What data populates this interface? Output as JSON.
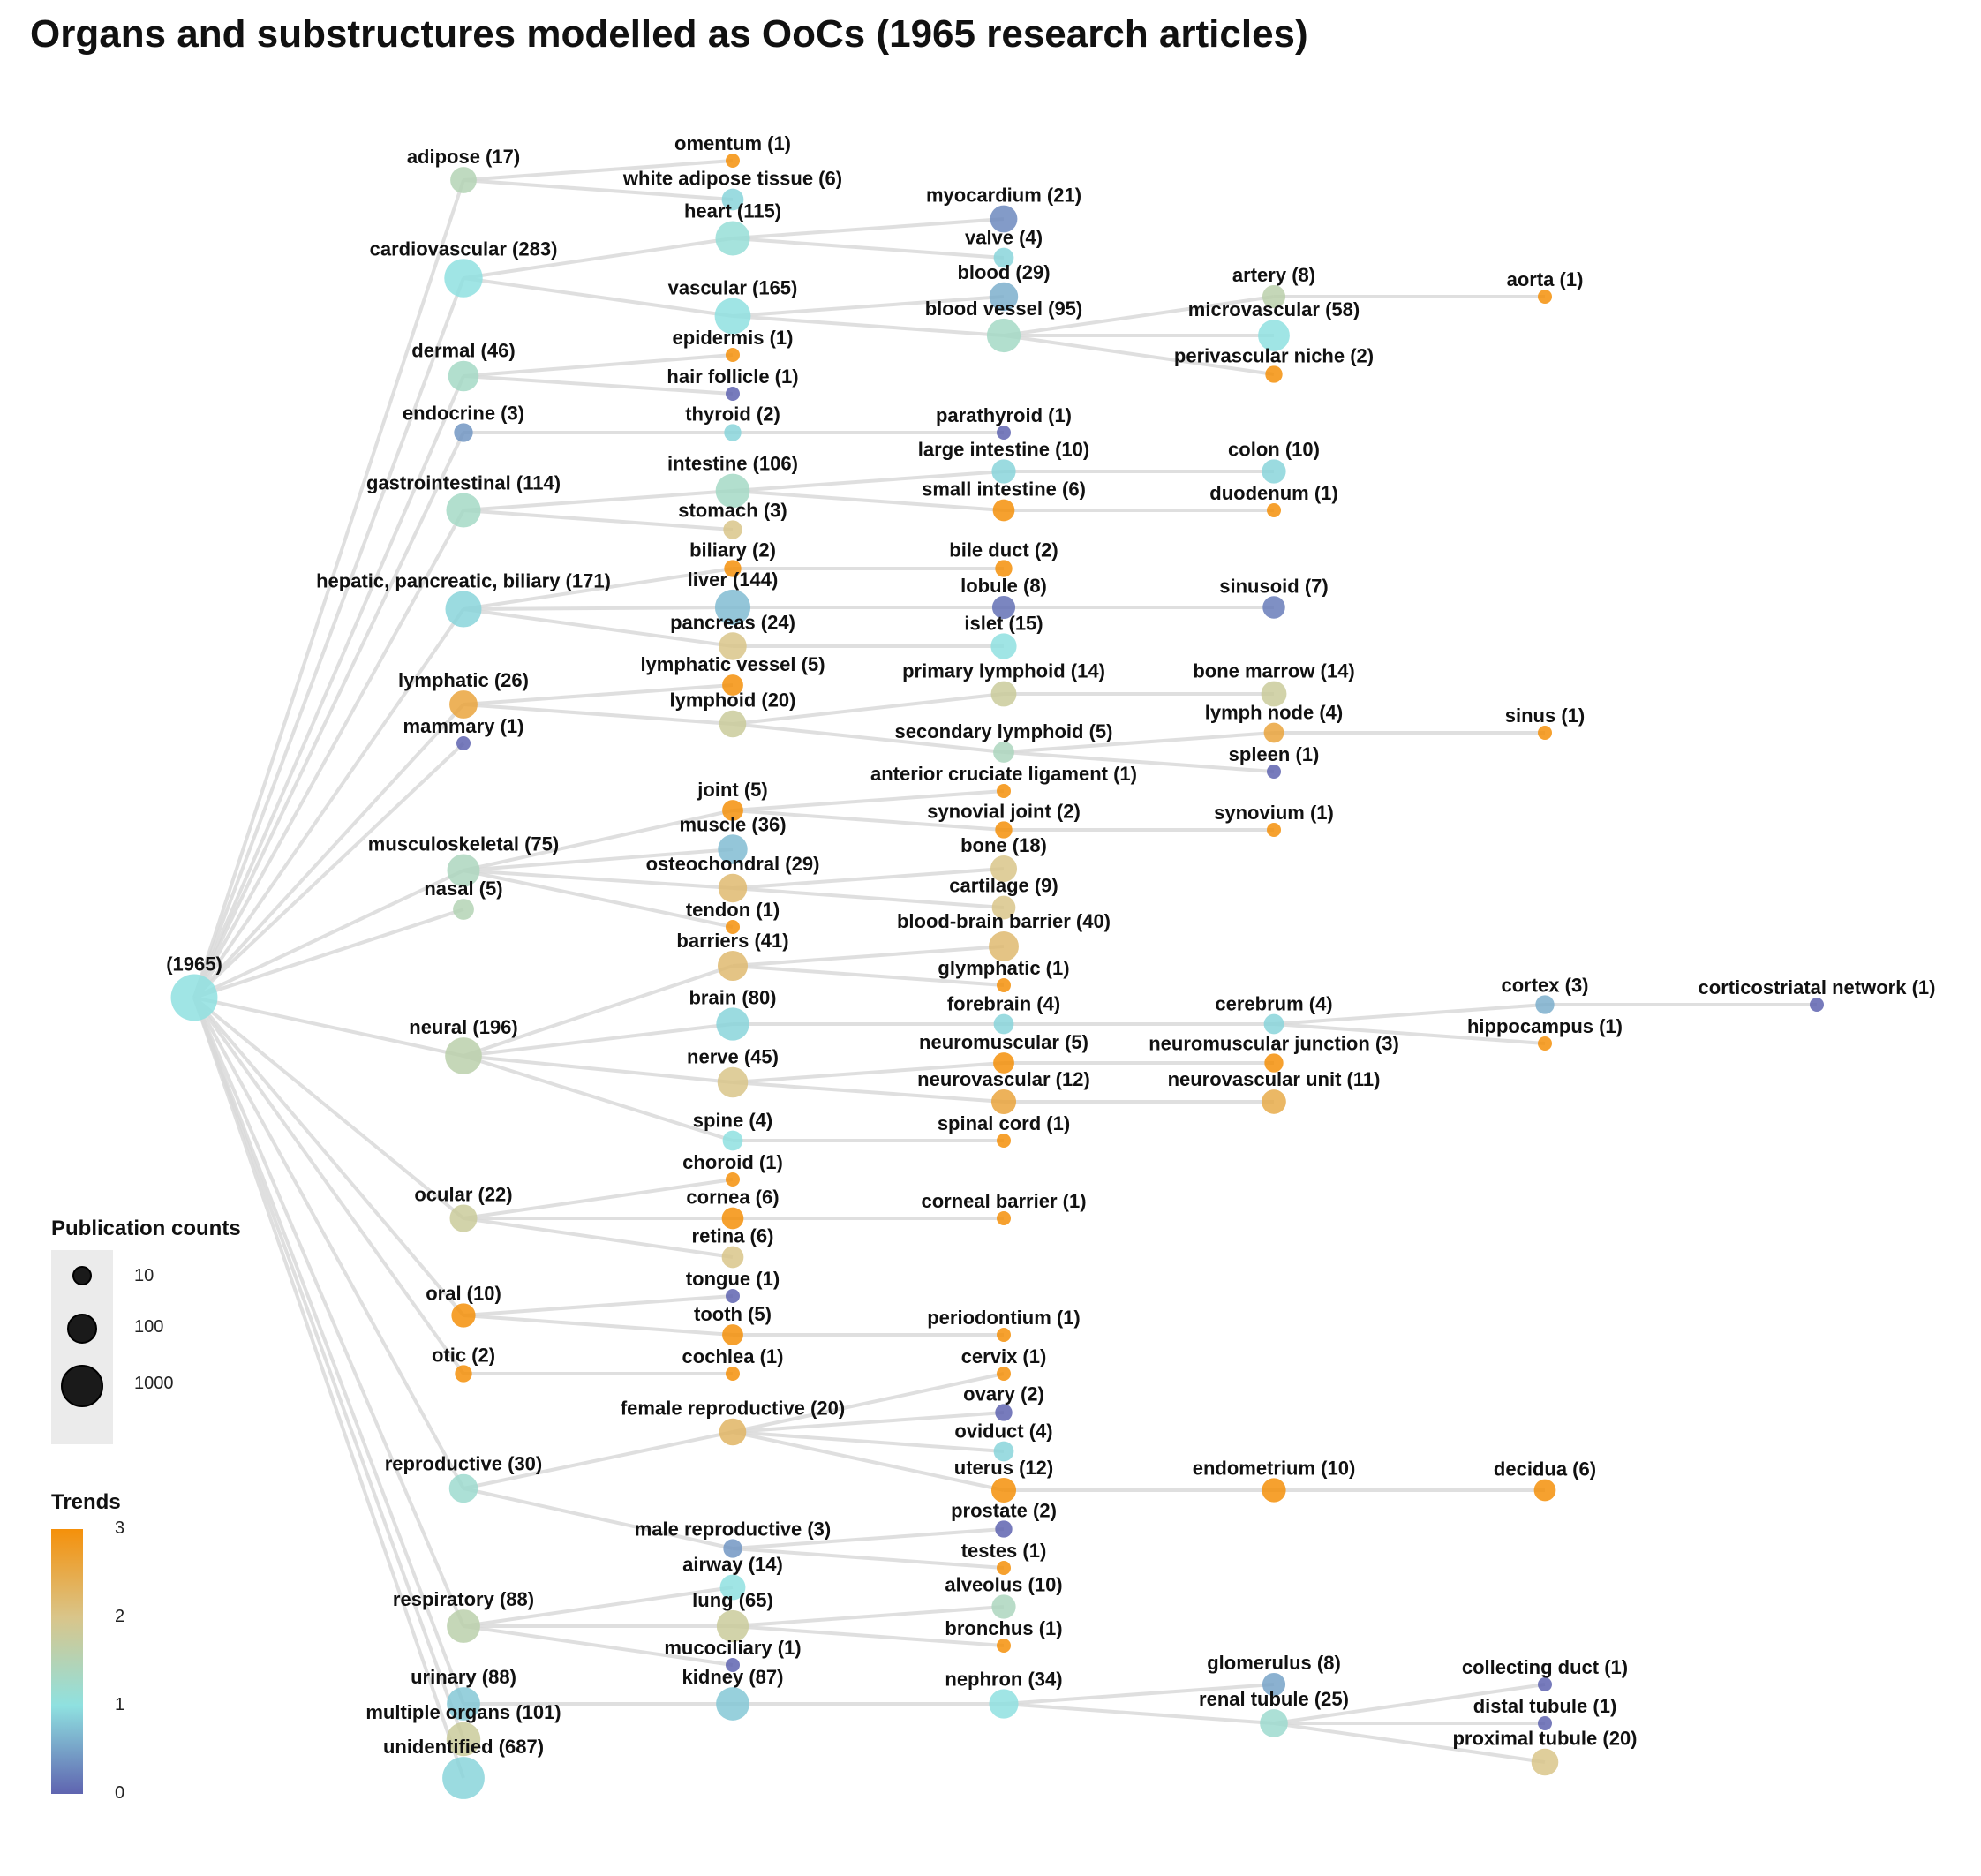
{
  "title": "Organs and substructures modelled as OoCs (1965 research articles)",
  "legend": {
    "size_title": "Publication counts",
    "size_items": [
      {
        "label": "10",
        "value": 10
      },
      {
        "label": "100",
        "value": 100
      },
      {
        "label": "1000",
        "value": 1000
      }
    ],
    "trend_title": "Trends",
    "trend_ticks": [
      "3",
      "2",
      "1",
      "0"
    ],
    "trend_colors": {
      "0": "#5f64b0",
      "1": "#8fe1e0",
      "2": "#d9c58a",
      "3": "#f5900a"
    }
  },
  "tree": {
    "root": {
      "label": "(1965)",
      "count": 1965,
      "trend": 1.0
    },
    "nodes": [
      {
        "id": "adipose",
        "label": "adipose (17)",
        "count": 17,
        "trend": 1.5,
        "parent": "root"
      },
      {
        "id": "omentum",
        "label": "omentum (1)",
        "count": 1,
        "trend": 3,
        "parent": "adipose"
      },
      {
        "id": "wat",
        "label": "white adipose tissue (6)",
        "count": 6,
        "trend": 0.9,
        "parent": "adipose"
      },
      {
        "id": "cardio",
        "label": "cardiovascular (283)",
        "count": 283,
        "trend": 1.0,
        "parent": "root"
      },
      {
        "id": "heart",
        "label": "heart (115)",
        "count": 115,
        "trend": 1.1,
        "parent": "cardio"
      },
      {
        "id": "myocardium",
        "label": "myocardium (21)",
        "count": 21,
        "trend": 0.3,
        "parent": "heart"
      },
      {
        "id": "valve",
        "label": "valve (4)",
        "count": 4,
        "trend": 0.9,
        "parent": "heart"
      },
      {
        "id": "vascular",
        "label": "vascular (165)",
        "count": 165,
        "trend": 1.0,
        "parent": "cardio"
      },
      {
        "id": "blood",
        "label": "blood (29)",
        "count": 29,
        "trend": 0.6,
        "parent": "vascular"
      },
      {
        "id": "bloodvessel",
        "label": "blood vessel (95)",
        "count": 95,
        "trend": 1.3,
        "parent": "vascular"
      },
      {
        "id": "artery",
        "label": "artery (8)",
        "count": 8,
        "trend": 1.6,
        "parent": "bloodvessel"
      },
      {
        "id": "aorta",
        "label": "aorta (1)",
        "count": 1,
        "trend": 3,
        "parent": "artery"
      },
      {
        "id": "microvascular",
        "label": "microvascular (58)",
        "count": 58,
        "trend": 1.0,
        "parent": "bloodvessel"
      },
      {
        "id": "perivascular",
        "label": "perivascular niche (2)",
        "count": 2,
        "trend": 3,
        "parent": "bloodvessel"
      },
      {
        "id": "dermal",
        "label": "dermal (46)",
        "count": 46,
        "trend": 1.3,
        "parent": "root"
      },
      {
        "id": "epidermis",
        "label": "epidermis (1)",
        "count": 1,
        "trend": 3,
        "parent": "dermal"
      },
      {
        "id": "hairfollicle",
        "label": "hair follicle (1)",
        "count": 1,
        "trend": 0,
        "parent": "dermal"
      },
      {
        "id": "endocrine",
        "label": "endocrine (3)",
        "count": 3,
        "trend": 0.4,
        "parent": "root"
      },
      {
        "id": "thyroid",
        "label": "thyroid (2)",
        "count": 2,
        "trend": 0.9,
        "parent": "endocrine"
      },
      {
        "id": "parathyroid",
        "label": "parathyroid (1)",
        "count": 1,
        "trend": 0,
        "parent": "thyroid"
      },
      {
        "id": "gi",
        "label": "gastrointestinal (114)",
        "count": 114,
        "trend": 1.3,
        "parent": "root"
      },
      {
        "id": "intestine",
        "label": "intestine (106)",
        "count": 106,
        "trend": 1.3,
        "parent": "gi"
      },
      {
        "id": "largeint",
        "label": "large intestine (10)",
        "count": 10,
        "trend": 0.9,
        "parent": "intestine"
      },
      {
        "id": "colon",
        "label": "colon (10)",
        "count": 10,
        "trend": 0.9,
        "parent": "largeint"
      },
      {
        "id": "smallint",
        "label": "small intestine (6)",
        "count": 6,
        "trend": 3,
        "parent": "intestine"
      },
      {
        "id": "duodenum",
        "label": "duodenum (1)",
        "count": 1,
        "trend": 3,
        "parent": "smallint"
      },
      {
        "id": "stomach",
        "label": "stomach (3)",
        "count": 3,
        "trend": 2.0,
        "parent": "gi"
      },
      {
        "id": "hpb",
        "label": "hepatic, pancreatic, biliary (171)",
        "count": 171,
        "trend": 0.9,
        "parent": "root"
      },
      {
        "id": "biliary",
        "label": "biliary (2)",
        "count": 2,
        "trend": 3,
        "parent": "hpb"
      },
      {
        "id": "bileduct",
        "label": "bile duct (2)",
        "count": 2,
        "trend": 3,
        "parent": "biliary"
      },
      {
        "id": "liver",
        "label": "liver (144)",
        "count": 144,
        "trend": 0.7,
        "parent": "hpb"
      },
      {
        "id": "lobule",
        "label": "lobule (8)",
        "count": 8,
        "trend": 0.1,
        "parent": "liver"
      },
      {
        "id": "sinusoid",
        "label": "sinusoid (7)",
        "count": 7,
        "trend": 0.2,
        "parent": "lobule"
      },
      {
        "id": "pancreas",
        "label": "pancreas (24)",
        "count": 24,
        "trend": 2.0,
        "parent": "hpb"
      },
      {
        "id": "islet",
        "label": "islet (15)",
        "count": 15,
        "trend": 1.0,
        "parent": "pancreas"
      },
      {
        "id": "lymphatic",
        "label": "lymphatic (26)",
        "count": 26,
        "trend": 2.6,
        "parent": "root"
      },
      {
        "id": "lymphvessel",
        "label": "lymphatic vessel (5)",
        "count": 5,
        "trend": 3,
        "parent": "lymphatic"
      },
      {
        "id": "lymphoid",
        "label": "lymphoid (20)",
        "count": 20,
        "trend": 1.8,
        "parent": "lymphatic"
      },
      {
        "id": "primlymph",
        "label": "primary lymphoid (14)",
        "count": 14,
        "trend": 1.8,
        "parent": "lymphoid"
      },
      {
        "id": "bonemarrow",
        "label": "bone marrow (14)",
        "count": 14,
        "trend": 1.8,
        "parent": "primlymph"
      },
      {
        "id": "seclymph",
        "label": "secondary lymphoid (5)",
        "count": 5,
        "trend": 1.4,
        "parent": "lymphoid"
      },
      {
        "id": "lymphnode",
        "label": "lymph node (4)",
        "count": 4,
        "trend": 2.6,
        "parent": "seclymph"
      },
      {
        "id": "sinus",
        "label": "sinus (1)",
        "count": 1,
        "trend": 3,
        "parent": "lymphnode"
      },
      {
        "id": "spleen",
        "label": "spleen (1)",
        "count": 1,
        "trend": 0,
        "parent": "seclymph"
      },
      {
        "id": "mammary",
        "label": "mammary (1)",
        "count": 1,
        "trend": 0,
        "parent": "root"
      },
      {
        "id": "msk",
        "label": "musculoskeletal (75)",
        "count": 75,
        "trend": 1.4,
        "parent": "root"
      },
      {
        "id": "joint",
        "label": "joint (5)",
        "count": 5,
        "trend": 3,
        "parent": "msk"
      },
      {
        "id": "acl",
        "label": "anterior cruciate ligament (1)",
        "count": 1,
        "trend": 3,
        "parent": "joint"
      },
      {
        "id": "synjoint",
        "label": "synovial joint (2)",
        "count": 2,
        "trend": 3,
        "parent": "joint"
      },
      {
        "id": "synovium",
        "label": "synovium (1)",
        "count": 1,
        "trend": 3,
        "parent": "synjoint"
      },
      {
        "id": "muscle",
        "label": "muscle (36)",
        "count": 36,
        "trend": 0.7,
        "parent": "msk"
      },
      {
        "id": "osteochondral",
        "label": "osteochondral (29)",
        "count": 29,
        "trend": 2.2,
        "parent": "msk"
      },
      {
        "id": "bone",
        "label": "bone (18)",
        "count": 18,
        "trend": 2.0,
        "parent": "osteochondral"
      },
      {
        "id": "cartilage",
        "label": "cartilage (9)",
        "count": 9,
        "trend": 2.0,
        "parent": "osteochondral"
      },
      {
        "id": "tendon",
        "label": "tendon (1)",
        "count": 1,
        "trend": 3,
        "parent": "msk"
      },
      {
        "id": "nasal",
        "label": "nasal (5)",
        "count": 5,
        "trend": 1.5,
        "parent": "root"
      },
      {
        "id": "neural",
        "label": "neural (196)",
        "count": 196,
        "trend": 1.6,
        "parent": "root"
      },
      {
        "id": "barriers",
        "label": "barriers (41)",
        "count": 41,
        "trend": 2.2,
        "parent": "neural"
      },
      {
        "id": "bbb",
        "label": "blood-brain barrier (40)",
        "count": 40,
        "trend": 2.2,
        "parent": "barriers"
      },
      {
        "id": "glymphatic",
        "label": "glymphatic (1)",
        "count": 1,
        "trend": 3,
        "parent": "barriers"
      },
      {
        "id": "brain",
        "label": "brain (80)",
        "count": 80,
        "trend": 0.9,
        "parent": "neural"
      },
      {
        "id": "forebrain",
        "label": "forebrain (4)",
        "count": 4,
        "trend": 0.9,
        "parent": "brain"
      },
      {
        "id": "cerebrum",
        "label": "cerebrum (4)",
        "count": 4,
        "trend": 0.9,
        "parent": "forebrain"
      },
      {
        "id": "cortex",
        "label": "cortex (3)",
        "count": 3,
        "trend": 0.6,
        "parent": "cerebrum"
      },
      {
        "id": "corticostriatal",
        "label": "corticostriatal network (1)",
        "count": 1,
        "trend": 0,
        "parent": "cortex"
      },
      {
        "id": "hippocampus",
        "label": "hippocampus (1)",
        "count": 1,
        "trend": 3,
        "parent": "cerebrum"
      },
      {
        "id": "nerve",
        "label": "nerve (45)",
        "count": 45,
        "trend": 2.0,
        "parent": "neural"
      },
      {
        "id": "neuromuscular",
        "label": "neuromuscular (5)",
        "count": 5,
        "trend": 3,
        "parent": "nerve"
      },
      {
        "id": "nmj",
        "label": "neuromuscular junction (3)",
        "count": 3,
        "trend": 3,
        "parent": "neuromuscular"
      },
      {
        "id": "neurovascular",
        "label": "neurovascular (12)",
        "count": 12,
        "trend": 2.6,
        "parent": "nerve"
      },
      {
        "id": "nvu",
        "label": "neurovascular unit (11)",
        "count": 11,
        "trend": 2.5,
        "parent": "neurovascular"
      },
      {
        "id": "spine",
        "label": "spine (4)",
        "count": 4,
        "trend": 1.0,
        "parent": "neural"
      },
      {
        "id": "spinalcord",
        "label": "spinal cord (1)",
        "count": 1,
        "trend": 3,
        "parent": "spine"
      },
      {
        "id": "ocular",
        "label": "ocular (22)",
        "count": 22,
        "trend": 1.8,
        "parent": "root"
      },
      {
        "id": "choroid",
        "label": "choroid (1)",
        "count": 1,
        "trend": 3,
        "parent": "ocular"
      },
      {
        "id": "cornea",
        "label": "cornea (6)",
        "count": 6,
        "trend": 3,
        "parent": "ocular"
      },
      {
        "id": "cornealbarrier",
        "label": "corneal barrier (1)",
        "count": 1,
        "trend": 3,
        "parent": "cornea"
      },
      {
        "id": "retina",
        "label": "retina (6)",
        "count": 6,
        "trend": 2.0,
        "parent": "ocular"
      },
      {
        "id": "oral",
        "label": "oral (10)",
        "count": 10,
        "trend": 3,
        "parent": "root"
      },
      {
        "id": "tongue",
        "label": "tongue (1)",
        "count": 1,
        "trend": 0,
        "parent": "oral"
      },
      {
        "id": "tooth",
        "label": "tooth (5)",
        "count": 5,
        "trend": 3,
        "parent": "oral"
      },
      {
        "id": "periodontium",
        "label": "periodontium (1)",
        "count": 1,
        "trend": 3,
        "parent": "tooth"
      },
      {
        "id": "otic",
        "label": "otic (2)",
        "count": 2,
        "trend": 3,
        "parent": "root"
      },
      {
        "id": "cochlea",
        "label": "cochlea (1)",
        "count": 1,
        "trend": 3,
        "parent": "otic"
      },
      {
        "id": "repro",
        "label": "reproductive (30)",
        "count": 30,
        "trend": 1.2,
        "parent": "root"
      },
      {
        "id": "femrepro",
        "label": "female reproductive (20)",
        "count": 20,
        "trend": 2.3,
        "parent": "repro"
      },
      {
        "id": "cervix",
        "label": "cervix (1)",
        "count": 1,
        "trend": 3,
        "parent": "femrepro"
      },
      {
        "id": "ovary",
        "label": "ovary (2)",
        "count": 2,
        "trend": 0,
        "parent": "femrepro"
      },
      {
        "id": "oviduct",
        "label": "oviduct (4)",
        "count": 4,
        "trend": 0.9,
        "parent": "femrepro"
      },
      {
        "id": "uterus",
        "label": "uterus (12)",
        "count": 12,
        "trend": 3,
        "parent": "femrepro"
      },
      {
        "id": "endometrium",
        "label": "endometrium (10)",
        "count": 10,
        "trend": 3,
        "parent": "uterus"
      },
      {
        "id": "decidua",
        "label": "decidua (6)",
        "count": 6,
        "trend": 3,
        "parent": "endometrium"
      },
      {
        "id": "malerepro",
        "label": "male reproductive (3)",
        "count": 3,
        "trend": 0.4,
        "parent": "repro"
      },
      {
        "id": "prostate",
        "label": "prostate (2)",
        "count": 2,
        "trend": 0,
        "parent": "malerepro"
      },
      {
        "id": "testes",
        "label": "testes (1)",
        "count": 1,
        "trend": 3,
        "parent": "malerepro"
      },
      {
        "id": "resp",
        "label": "respiratory (88)",
        "count": 88,
        "trend": 1.6,
        "parent": "root"
      },
      {
        "id": "airway",
        "label": "airway (14)",
        "count": 14,
        "trend": 1.0,
        "parent": "resp"
      },
      {
        "id": "lung",
        "label": "lung (65)",
        "count": 65,
        "trend": 1.8,
        "parent": "resp"
      },
      {
        "id": "alveolus",
        "label": "alveolus (10)",
        "count": 10,
        "trend": 1.4,
        "parent": "lung"
      },
      {
        "id": "bronchus",
        "label": "bronchus (1)",
        "count": 1,
        "trend": 3,
        "parent": "lung"
      },
      {
        "id": "mucociliary",
        "label": "mucociliary (1)",
        "count": 1,
        "trend": 0,
        "parent": "resp"
      },
      {
        "id": "urinary",
        "label": "urinary (88)",
        "count": 88,
        "trend": 0.8,
        "parent": "root"
      },
      {
        "id": "kidney",
        "label": "kidney (87)",
        "count": 87,
        "trend": 0.8,
        "parent": "urinary"
      },
      {
        "id": "nephron",
        "label": "nephron (34)",
        "count": 34,
        "trend": 1.0,
        "parent": "kidney"
      },
      {
        "id": "glomerulus",
        "label": "glomerulus (8)",
        "count": 8,
        "trend": 0.5,
        "parent": "nephron"
      },
      {
        "id": "renaltubule",
        "label": "renal tubule (25)",
        "count": 25,
        "trend": 1.2,
        "parent": "nephron"
      },
      {
        "id": "collecting",
        "label": "collecting duct (1)",
        "count": 1,
        "trend": 0,
        "parent": "renaltubule"
      },
      {
        "id": "distal",
        "label": "distal tubule (1)",
        "count": 1,
        "trend": 0,
        "parent": "renaltubule"
      },
      {
        "id": "proximal",
        "label": "proximal tubule (20)",
        "count": 20,
        "trend": 2.0,
        "parent": "renaltubule"
      },
      {
        "id": "multiple",
        "label": "multiple organs (101)",
        "count": 101,
        "trend": 1.8,
        "parent": "root"
      },
      {
        "id": "unidentified",
        "label": "unidentified (687)",
        "count": 687,
        "trend": 0.9,
        "parent": "root"
      }
    ]
  }
}
